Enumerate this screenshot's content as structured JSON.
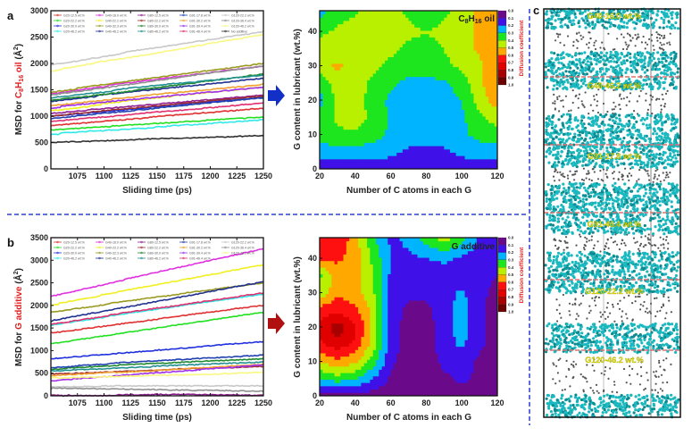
{
  "panel_labels": {
    "a": "a",
    "b": "b",
    "c": "c"
  },
  "colors": {
    "divider": "#2a3fd0",
    "arrow_a": "#1230c8",
    "arrow_b": "#b01010",
    "highlight": "#e02020",
    "molecule": "#1ab8bf",
    "chain": "#555555",
    "label": "#e4e000",
    "separator": "#e07070"
  },
  "chart_data": [
    {
      "id": "a",
      "type": "line",
      "xlabel": "Sliding time (ps)",
      "ylabel": {
        "prefix": "MSD for ",
        "highlight_main": "C",
        "highlight_sub1": "8",
        "highlight_mid": "H",
        "highlight_sub2": "16",
        "highlight_tail": " oil",
        "suffix_main": " (Å",
        "suffix_sup": "2",
        "suffix_end": ")"
      },
      "xlim": [
        1050,
        1250
      ],
      "ylim": [
        0,
        3000
      ],
      "xticks": [
        1075,
        1100,
        1125,
        1150,
        1175,
        1200,
        1225,
        1250
      ],
      "yticks": [
        0,
        500,
        1000,
        1500,
        2000,
        2500,
        3000
      ],
      "legend_placement": "top",
      "x": [
        1050,
        1250
      ],
      "series": [
        {
          "name": "G20-12.5 wt.%",
          "color": "#e03030",
          "values": [
            800,
            1150
          ]
        },
        {
          "name": "G20-22.2 wt.%",
          "color": "#20e020",
          "values": [
            750,
            980
          ]
        },
        {
          "name": "G20-30.0 wt.%",
          "color": "#2030e0",
          "values": [
            1000,
            1350
          ]
        },
        {
          "name": "G20-46.2 wt.%",
          "color": "#30e8e8",
          "values": [
            650,
            930
          ]
        },
        {
          "name": "G40-16.0 wt.%",
          "color": "#e030e0",
          "values": [
            1420,
            1950
          ]
        },
        {
          "name": "G40-22.2 wt.%",
          "color": "#f0f020",
          "values": [
            1100,
            1550
          ]
        },
        {
          "name": "G40-32.3 wt.%",
          "color": "#9a9a20",
          "values": [
            1450,
            2000
          ]
        },
        {
          "name": "G40-46.2 wt.%",
          "color": "#203090",
          "values": [
            1280,
            1720
          ]
        },
        {
          "name": "G80-12.5 wt.%",
          "color": "#902090",
          "values": [
            1050,
            1400
          ]
        },
        {
          "name": "G80-22.2 wt.%",
          "color": "#a03030",
          "values": [
            1000,
            1380
          ]
        },
        {
          "name": "G80-30.0 wt.%",
          "color": "#208a30",
          "values": [
            1300,
            1800
          ]
        },
        {
          "name": "G80-46.2 wt.%",
          "color": "#209090",
          "values": [
            1350,
            1780
          ]
        },
        {
          "name": "G91-17.8 wt.%",
          "color": "#2040b0",
          "values": [
            950,
            1350
          ]
        },
        {
          "name": "G91-30.2 wt.%",
          "color": "#f0a030",
          "values": [
            1200,
            1600
          ]
        },
        {
          "name": "G91-39.4 wt.%",
          "color": "#a030f0",
          "values": [
            1150,
            1550
          ]
        },
        {
          "name": "G91-46.4 wt.%",
          "color": "#e03070",
          "values": [
            900,
            1250
          ]
        },
        {
          "name": "G120-22.2 wt.%",
          "color": "#c8c8c8",
          "values": [
            1970,
            2600
          ]
        },
        {
          "name": "G120-36.4 wt.%",
          "color": "#909090",
          "values": [
            1400,
            1950
          ]
        },
        {
          "name": "G120-46.2 wt.%",
          "color": "#f8f880",
          "values": [
            1850,
            2550
          ]
        },
        {
          "name": "No additive",
          "color": "#303030",
          "values": [
            500,
            630
          ]
        }
      ]
    },
    {
      "id": "b",
      "type": "line",
      "xlabel": "Sliding time (ps)",
      "ylabel": {
        "prefix": "MSD for ",
        "highlight": "G additive",
        "suffix_main": " (Å",
        "suffix_sup": "2",
        "suffix_end": ")"
      },
      "xlim": [
        1050,
        1250
      ],
      "ylim": [
        0,
        3500
      ],
      "xticks": [
        1075,
        1100,
        1125,
        1150,
        1175,
        1200,
        1225,
        1250
      ],
      "yticks": [
        0,
        500,
        1000,
        1500,
        2000,
        2500,
        3000,
        3500
      ],
      "legend_placement": "top",
      "x": [
        1050,
        1250
      ],
      "series": [
        {
          "name": "G20-12.5 wt.%",
          "color": "#e03030",
          "values": [
            1400,
            2000
          ]
        },
        {
          "name": "G20-22.2 wt.%",
          "color": "#20e020",
          "values": [
            1150,
            1850
          ]
        },
        {
          "name": "G20-30.0 wt.%",
          "color": "#2030e0",
          "values": [
            820,
            1200
          ]
        },
        {
          "name": "G20-46.2 wt.%",
          "color": "#30e8e8",
          "values": [
            1550,
            2250
          ]
        },
        {
          "name": "G40-16.0 wt.%",
          "color": "#e030e0",
          "values": [
            2200,
            3250
          ]
        },
        {
          "name": "G40-22.2 wt.%",
          "color": "#f0f020",
          "values": [
            2000,
            2900
          ]
        },
        {
          "name": "G40-32.3 wt.%",
          "color": "#9a9a20",
          "values": [
            1850,
            2500
          ]
        },
        {
          "name": "G40-46.2 wt.%",
          "color": "#203090",
          "values": [
            1650,
            2520
          ]
        },
        {
          "name": "G80-12.5 wt.%",
          "color": "#902090",
          "values": [
            10,
            10
          ]
        },
        {
          "name": "G80-22.2 wt.%",
          "color": "#a03030",
          "values": [
            480,
            650
          ]
        },
        {
          "name": "G80-30.0 wt.%",
          "color": "#208a30",
          "values": [
            580,
            820
          ]
        },
        {
          "name": "G80-46.2 wt.%",
          "color": "#209090",
          "values": [
            550,
            750
          ]
        },
        {
          "name": "G91-17.8 wt.%",
          "color": "#2040b0",
          "values": [
            620,
            900
          ]
        },
        {
          "name": "G91-30.2 wt.%",
          "color": "#f0a030",
          "values": [
            450,
            700
          ]
        },
        {
          "name": "G91-39.4 wt.%",
          "color": "#a030f0",
          "values": [
            330,
            680
          ]
        },
        {
          "name": "G91-46.4 wt.%",
          "color": "#e03070",
          "values": [
            1580,
            2280
          ]
        },
        {
          "name": "G120-22.2 wt.%",
          "color": "#c8c8c8",
          "values": [
            200,
            220
          ]
        },
        {
          "name": "G120-36.4 wt.%",
          "color": "#909090",
          "values": [
            150,
            100
          ]
        },
        {
          "name": "G120-46.2 wt.%",
          "color": "#f8f880",
          "values": [
            400,
            520
          ]
        }
      ]
    },
    {
      "id": "a-contour",
      "type": "heatmap",
      "annotation": {
        "main": "C",
        "sub1": "8",
        "mid": "H",
        "sub2": "16",
        "tail": " oil"
      },
      "xlabel": "Number of C atoms in each G",
      "ylabel": "G content in lubricant (wt.%)",
      "xlim": [
        20,
        120
      ],
      "ylim": [
        0,
        46
      ],
      "xticks": [
        20,
        40,
        60,
        80,
        100,
        120
      ],
      "yticks": [
        0,
        10,
        20,
        30,
        40
      ],
      "colorbar_label": "Diffusion coefficient",
      "colorbar_ticks": [
        "0.0",
        "0.1",
        "0.2",
        "0.3",
        "0.4",
        "0.5",
        "0.6",
        "0.7",
        "0.8",
        "0.9",
        "1.0"
      ],
      "level_colors": [
        "#6a0a8a",
        "#4010e8",
        "#00b4ff",
        "#1ee61e",
        "#b8f000",
        "#ffa800",
        "#ff1010",
        "#e00000",
        "#a80000",
        "#6a0000"
      ],
      "x": [
        20,
        30,
        40,
        50,
        60,
        70,
        80,
        90,
        100,
        110,
        120
      ],
      "y": [
        0,
        5,
        10,
        15,
        20,
        25,
        30,
        35,
        40,
        46
      ],
      "z": [
        [
          0.15,
          0.15,
          0.15,
          0.15,
          0.15,
          0.15,
          0.15,
          0.15,
          0.15,
          0.15,
          0.15
        ],
        [
          0.25,
          0.25,
          0.25,
          0.25,
          0.22,
          0.18,
          0.18,
          0.18,
          0.22,
          0.25,
          0.25
        ],
        [
          0.35,
          0.38,
          0.38,
          0.35,
          0.28,
          0.25,
          0.25,
          0.25,
          0.28,
          0.33,
          0.35
        ],
        [
          0.32,
          0.42,
          0.45,
          0.38,
          0.28,
          0.25,
          0.25,
          0.25,
          0.28,
          0.38,
          0.45
        ],
        [
          0.27,
          0.42,
          0.45,
          0.35,
          0.28,
          0.25,
          0.25,
          0.25,
          0.3,
          0.45,
          0.55
        ],
        [
          0.32,
          0.45,
          0.45,
          0.38,
          0.32,
          0.27,
          0.27,
          0.28,
          0.35,
          0.48,
          0.58
        ],
        [
          0.45,
          0.52,
          0.45,
          0.42,
          0.38,
          0.35,
          0.35,
          0.38,
          0.42,
          0.48,
          0.58
        ],
        [
          0.45,
          0.45,
          0.45,
          0.45,
          0.42,
          0.38,
          0.38,
          0.4,
          0.45,
          0.52,
          0.58
        ],
        [
          0.38,
          0.42,
          0.45,
          0.45,
          0.45,
          0.42,
          0.4,
          0.42,
          0.45,
          0.52,
          0.58
        ],
        [
          0.25,
          0.35,
          0.38,
          0.45,
          0.45,
          0.38,
          0.35,
          0.38,
          0.45,
          0.52,
          0.58
        ]
      ]
    },
    {
      "id": "b-contour",
      "type": "heatmap",
      "annotation": {
        "main": "G additive"
      },
      "xlabel": "Number of C atoms in each G",
      "ylabel": "G content in lubricant (wt.%)",
      "xlim": [
        20,
        120
      ],
      "ylim": [
        0,
        46
      ],
      "xticks": [
        20,
        40,
        60,
        80,
        100,
        120
      ],
      "yticks": [
        0,
        10,
        20,
        30,
        40
      ],
      "colorbar_label": "Diffusion coefficient",
      "colorbar_ticks": [
        "0.0",
        "0.1",
        "0.2",
        "0.3",
        "0.4",
        "0.5",
        "0.6",
        "0.7",
        "0.8",
        "0.9",
        "1.0"
      ],
      "level_colors": [
        "#6a0a8a",
        "#4010e8",
        "#00b4ff",
        "#1ee61e",
        "#b8f000",
        "#ffa800",
        "#ff1010",
        "#e00000",
        "#a80000",
        "#6a0000"
      ],
      "x": [
        20,
        30,
        40,
        50,
        60,
        70,
        80,
        90,
        100,
        110,
        120
      ],
      "y": [
        0,
        5,
        10,
        15,
        20,
        25,
        30,
        35,
        40,
        46
      ],
      "z": [
        [
          0.05,
          0.05,
          0.05,
          0.05,
          0.05,
          0.05,
          0.05,
          0.05,
          0.05,
          0.05,
          0.05
        ],
        [
          0.3,
          0.35,
          0.3,
          0.2,
          0.08,
          0.05,
          0.05,
          0.08,
          0.12,
          0.08,
          0.05
        ],
        [
          0.5,
          0.58,
          0.52,
          0.35,
          0.12,
          0.05,
          0.05,
          0.12,
          0.15,
          0.08,
          0.05
        ],
        [
          0.68,
          0.75,
          0.68,
          0.45,
          0.15,
          0.05,
          0.05,
          0.15,
          0.22,
          0.12,
          0.05
        ],
        [
          0.72,
          0.86,
          0.72,
          0.48,
          0.15,
          0.05,
          0.05,
          0.15,
          0.25,
          0.12,
          0.05
        ],
        [
          0.65,
          0.68,
          0.62,
          0.48,
          0.15,
          0.08,
          0.08,
          0.15,
          0.25,
          0.12,
          0.05
        ],
        [
          0.42,
          0.58,
          0.55,
          0.42,
          0.15,
          0.12,
          0.12,
          0.15,
          0.22,
          0.12,
          0.08
        ],
        [
          0.38,
          0.55,
          0.55,
          0.4,
          0.18,
          0.15,
          0.15,
          0.15,
          0.15,
          0.12,
          0.1
        ],
        [
          0.62,
          0.62,
          0.55,
          0.38,
          0.2,
          0.18,
          0.2,
          0.22,
          0.18,
          0.15,
          0.12
        ],
        [
          0.68,
          0.68,
          0.55,
          0.32,
          0.18,
          0.22,
          0.35,
          0.45,
          0.35,
          0.18,
          0.15
        ]
      ]
    }
  ],
  "panel_c": {
    "labels": [
      "G40-16.0 wt.%",
      "G40-46.2 wt.%",
      "G91-17.8 wt.%",
      "G91-46.4 wt.%",
      "G120-22.2 wt.%",
      "G120-46.2 wt.%"
    ]
  }
}
